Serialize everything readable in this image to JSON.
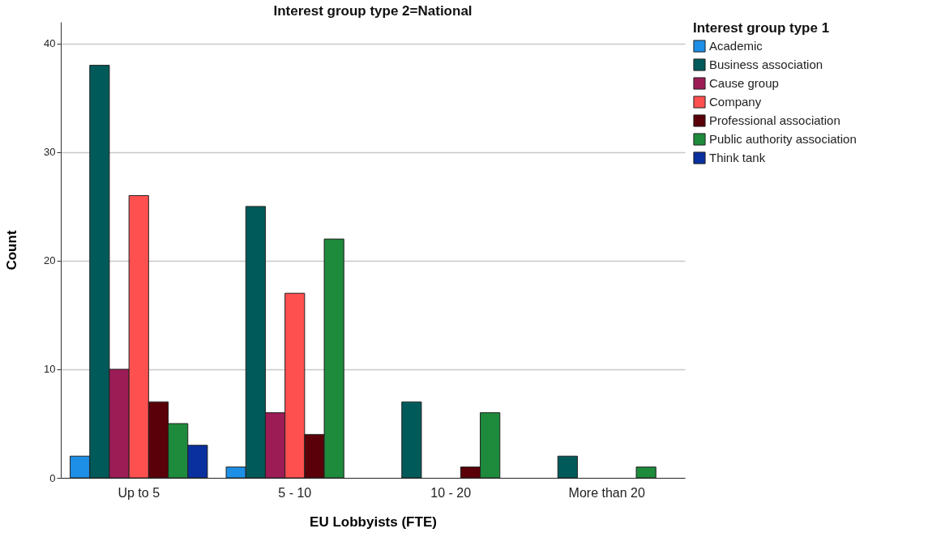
{
  "chart_data": {
    "type": "bar",
    "title": "Interest group type 2=National",
    "xlabel": "EU Lobbyists (FTE)",
    "ylabel": "Count",
    "legend_title": "Interest group type 1",
    "categories": [
      "Up to 5",
      "5 - 10",
      "10 - 20",
      "More than 20"
    ],
    "series": [
      {
        "name": "Academic",
        "color": "#1e8fe6",
        "values": [
          2,
          1,
          null,
          null
        ]
      },
      {
        "name": "Business association",
        "color": "#005a5a",
        "values": [
          38,
          25,
          7,
          2
        ]
      },
      {
        "name": "Cause group",
        "color": "#9c1c56",
        "values": [
          10,
          6,
          null,
          null
        ]
      },
      {
        "name": "Company",
        "color": "#ff5050",
        "values": [
          26,
          17,
          null,
          null
        ]
      },
      {
        "name": "Professional association",
        "color": "#5a0008",
        "values": [
          7,
          4,
          1,
          null
        ]
      },
      {
        "name": "Public authority association",
        "color": "#1e8a3c",
        "values": [
          5,
          22,
          6,
          1
        ]
      },
      {
        "name": "Think tank",
        "color": "#0a2f9e",
        "values": [
          3,
          null,
          null,
          null
        ]
      }
    ],
    "ylim": [
      0,
      42
    ],
    "yticks": [
      0,
      10,
      20,
      30,
      40
    ],
    "grid": "y",
    "legend": "top right"
  }
}
